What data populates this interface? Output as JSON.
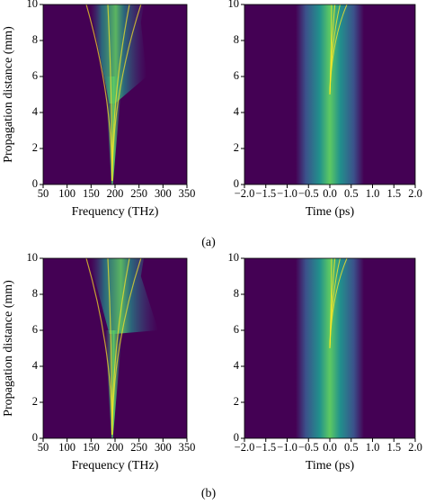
{
  "captions": [
    "(a)",
    "(b)"
  ],
  "chart_data": [
    {
      "type": "heatmap",
      "domain": "frequency",
      "colormap": "viridis",
      "xlabel": "Frequency (THz)",
      "ylabel": "Propagation distance (mm)",
      "xlim": [
        50,
        350
      ],
      "xticks": [
        50,
        100,
        150,
        200,
        250,
        300,
        350
      ],
      "ylim": [
        0,
        10
      ],
      "yticks": [
        0,
        2,
        4,
        6,
        8,
        10
      ]
    },
    {
      "type": "heatmap",
      "domain": "time",
      "colormap": "viridis",
      "xlabel": "Time (ps)",
      "xlim": [
        -2,
        2
      ],
      "xticks": [
        {
          "value": -2,
          "label": "−2.0"
        },
        {
          "value": -1.5,
          "label": "−1.5"
        },
        {
          "value": -1,
          "label": "−1.0"
        },
        {
          "value": -0.5,
          "label": "−0.5"
        },
        {
          "value": 0,
          "label": "0.0"
        },
        0.5,
        {
          "value": 1,
          "label": "1.0"
        },
        1.5,
        {
          "value": 2,
          "label": "2.0"
        }
      ],
      "ylim": [
        0,
        10
      ],
      "yticks": [
        0,
        2,
        4,
        6,
        8,
        10
      ]
    },
    {
      "type": "heatmap",
      "domain": "frequency",
      "colormap": "viridis",
      "xlabel": "Frequency (THz)",
      "ylabel": "Propagation distance (mm)",
      "xlim": [
        50,
        350
      ],
      "xticks": [
        50,
        100,
        150,
        200,
        250,
        300,
        350
      ],
      "ylim": [
        0,
        10
      ],
      "yticks": [
        0,
        2,
        4,
        6,
        8,
        10
      ]
    },
    {
      "type": "heatmap",
      "domain": "time",
      "colormap": "viridis",
      "xlabel": "Time (ps)",
      "xlim": [
        -2,
        2
      ],
      "xticks": [
        {
          "value": -2,
          "label": "−2.0"
        },
        {
          "value": -1.5,
          "label": "−1.5"
        },
        {
          "value": -1,
          "label": "−1.0"
        },
        {
          "value": -0.5,
          "label": "−0.5"
        },
        {
          "value": 0,
          "label": "0.0"
        },
        0.5,
        {
          "value": 1,
          "label": "1.0"
        },
        1.5,
        {
          "value": 2,
          "label": "2.0"
        }
      ],
      "ylim": [
        0,
        10
      ],
      "yticks": [
        0,
        2,
        4,
        6,
        8,
        10
      ]
    }
  ]
}
